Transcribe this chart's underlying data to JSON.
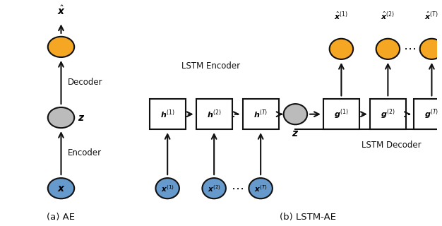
{
  "fig_width": 6.26,
  "fig_height": 3.2,
  "dpi": 100,
  "bg_color": "#ffffff",
  "blue_color": "#6699CC",
  "gold_color": "#F5A623",
  "gray_color": "#BBBBBB",
  "box_color": "#ffffff",
  "box_edge": "#111111",
  "text_color": "#111111",
  "caption_a": "(a) AE",
  "caption_b": "(b) LSTM-AE",
  "label_encoder": "Encoder",
  "label_decoder": "Decoder",
  "label_lstm_encoder": "LSTM Encoder",
  "label_lstm_decoder": "LSTM Decoder"
}
